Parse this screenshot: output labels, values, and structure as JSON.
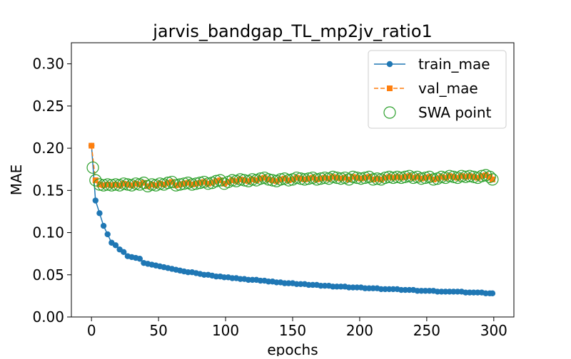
{
  "chart_data": {
    "type": "line",
    "title": "jarvis_bandgap_TL_mp2jv_ratio1",
    "xlabel": "epochs",
    "ylabel": "MAE",
    "xlim": [
      -15,
      315
    ],
    "ylim": [
      0.0,
      0.325
    ],
    "x_ticks": [
      0,
      50,
      100,
      150,
      200,
      250,
      300
    ],
    "y_ticks": [
      0.0,
      0.05,
      0.1,
      0.15,
      0.2,
      0.25,
      0.3
    ],
    "y_tick_labels": [
      "0.00",
      "0.05",
      "0.10",
      "0.15",
      "0.20",
      "0.25",
      "0.30"
    ],
    "grid": false,
    "legend_position": "top-right",
    "colors": {
      "train_mae": "#1f77b4",
      "val_mae": "#ff7f0e",
      "swa_point": "#2ca02c"
    },
    "series": [
      {
        "name": "train_mae",
        "marker": "circle",
        "linestyle": "solid",
        "x": [
          0,
          3,
          6,
          9,
          12,
          15,
          18,
          21,
          24,
          27,
          30,
          33,
          36,
          39,
          42,
          45,
          48,
          51,
          54,
          57,
          60,
          63,
          66,
          69,
          72,
          75,
          78,
          81,
          84,
          87,
          90,
          93,
          96,
          99,
          102,
          105,
          108,
          111,
          114,
          117,
          120,
          123,
          126,
          129,
          132,
          135,
          138,
          141,
          144,
          147,
          150,
          153,
          156,
          159,
          162,
          165,
          168,
          171,
          174,
          177,
          180,
          183,
          186,
          189,
          192,
          195,
          198,
          201,
          204,
          207,
          210,
          213,
          216,
          219,
          222,
          225,
          228,
          231,
          234,
          237,
          240,
          243,
          246,
          249,
          252,
          255,
          258,
          261,
          264,
          267,
          270,
          273,
          276,
          279,
          282,
          285,
          288,
          291,
          294,
          297,
          299
        ],
        "values": [
          0.203,
          0.138,
          0.123,
          0.108,
          0.098,
          0.088,
          0.085,
          0.08,
          0.077,
          0.072,
          0.071,
          0.07,
          0.069,
          0.064,
          0.063,
          0.062,
          0.061,
          0.06,
          0.059,
          0.058,
          0.057,
          0.056,
          0.055,
          0.054,
          0.053,
          0.053,
          0.052,
          0.051,
          0.05,
          0.05,
          0.049,
          0.048,
          0.048,
          0.047,
          0.047,
          0.046,
          0.046,
          0.045,
          0.045,
          0.044,
          0.044,
          0.044,
          0.043,
          0.043,
          0.042,
          0.042,
          0.041,
          0.041,
          0.04,
          0.04,
          0.04,
          0.039,
          0.039,
          0.039,
          0.038,
          0.038,
          0.038,
          0.037,
          0.037,
          0.037,
          0.036,
          0.036,
          0.036,
          0.036,
          0.035,
          0.035,
          0.035,
          0.035,
          0.034,
          0.034,
          0.034,
          0.034,
          0.033,
          0.033,
          0.033,
          0.033,
          0.033,
          0.032,
          0.032,
          0.032,
          0.032,
          0.031,
          0.031,
          0.031,
          0.031,
          0.031,
          0.03,
          0.03,
          0.03,
          0.03,
          0.03,
          0.03,
          0.03,
          0.029,
          0.029,
          0.029,
          0.029,
          0.029,
          0.028,
          0.028,
          0.028
        ]
      },
      {
        "name": "val_mae",
        "marker": "square",
        "linestyle": "dashed",
        "x": [
          0,
          3,
          6,
          9,
          12,
          15,
          18,
          21,
          24,
          27,
          30,
          33,
          36,
          39,
          42,
          45,
          48,
          51,
          54,
          57,
          60,
          63,
          66,
          69,
          72,
          75,
          78,
          81,
          84,
          87,
          90,
          93,
          96,
          99,
          102,
          105,
          108,
          111,
          114,
          117,
          120,
          123,
          126,
          129,
          132,
          135,
          138,
          141,
          144,
          147,
          150,
          153,
          156,
          159,
          162,
          165,
          168,
          171,
          174,
          177,
          180,
          183,
          186,
          189,
          192,
          195,
          198,
          201,
          204,
          207,
          210,
          213,
          216,
          219,
          222,
          225,
          228,
          231,
          234,
          237,
          240,
          243,
          246,
          249,
          252,
          255,
          258,
          261,
          264,
          267,
          270,
          273,
          276,
          279,
          282,
          285,
          288,
          291,
          294,
          297,
          299
        ],
        "values": [
          0.203,
          0.162,
          0.157,
          0.156,
          0.157,
          0.156,
          0.157,
          0.156,
          0.158,
          0.157,
          0.156,
          0.158,
          0.157,
          0.159,
          0.155,
          0.157,
          0.156,
          0.158,
          0.157,
          0.159,
          0.16,
          0.156,
          0.157,
          0.158,
          0.159,
          0.157,
          0.158,
          0.159,
          0.16,
          0.158,
          0.159,
          0.161,
          0.162,
          0.158,
          0.16,
          0.162,
          0.161,
          0.163,
          0.162,
          0.161,
          0.163,
          0.162,
          0.164,
          0.165,
          0.163,
          0.162,
          0.161,
          0.163,
          0.164,
          0.162,
          0.163,
          0.165,
          0.164,
          0.163,
          0.164,
          0.165,
          0.163,
          0.164,
          0.165,
          0.164,
          0.166,
          0.165,
          0.164,
          0.165,
          0.163,
          0.166,
          0.165,
          0.164,
          0.165,
          0.166,
          0.163,
          0.164,
          0.163,
          0.165,
          0.166,
          0.165,
          0.166,
          0.165,
          0.166,
          0.167,
          0.165,
          0.166,
          0.164,
          0.165,
          0.166,
          0.163,
          0.164,
          0.166,
          0.165,
          0.167,
          0.166,
          0.165,
          0.167,
          0.166,
          0.167,
          0.166,
          0.165,
          0.167,
          0.168,
          0.166,
          0.163
        ]
      },
      {
        "name": "SWA point",
        "marker": "open-circle",
        "linestyle": "none",
        "x": [
          1,
          3,
          6,
          9,
          12,
          15,
          18,
          21,
          24,
          27,
          30,
          33,
          36,
          39,
          42,
          45,
          48,
          51,
          54,
          57,
          60,
          63,
          66,
          69,
          72,
          75,
          78,
          81,
          84,
          87,
          90,
          93,
          96,
          99,
          102,
          105,
          108,
          111,
          114,
          117,
          120,
          123,
          126,
          129,
          132,
          135,
          138,
          141,
          144,
          147,
          150,
          153,
          156,
          159,
          162,
          165,
          168,
          171,
          174,
          177,
          180,
          183,
          186,
          189,
          192,
          195,
          198,
          201,
          204,
          207,
          210,
          213,
          216,
          219,
          222,
          225,
          228,
          231,
          234,
          237,
          240,
          243,
          246,
          249,
          252,
          255,
          258,
          261,
          264,
          267,
          270,
          273,
          276,
          279,
          282,
          285,
          288,
          291,
          294,
          297,
          299
        ],
        "values": [
          0.177,
          0.162,
          0.157,
          0.156,
          0.157,
          0.156,
          0.157,
          0.156,
          0.158,
          0.157,
          0.156,
          0.158,
          0.157,
          0.159,
          0.155,
          0.157,
          0.156,
          0.158,
          0.157,
          0.159,
          0.16,
          0.156,
          0.157,
          0.158,
          0.159,
          0.157,
          0.158,
          0.159,
          0.16,
          0.158,
          0.159,
          0.161,
          0.162,
          0.158,
          0.16,
          0.162,
          0.161,
          0.163,
          0.162,
          0.161,
          0.163,
          0.162,
          0.164,
          0.165,
          0.163,
          0.162,
          0.161,
          0.163,
          0.164,
          0.162,
          0.163,
          0.165,
          0.164,
          0.163,
          0.164,
          0.165,
          0.163,
          0.164,
          0.165,
          0.164,
          0.166,
          0.165,
          0.164,
          0.165,
          0.163,
          0.166,
          0.165,
          0.164,
          0.165,
          0.166,
          0.163,
          0.164,
          0.163,
          0.165,
          0.166,
          0.165,
          0.166,
          0.165,
          0.166,
          0.167,
          0.165,
          0.166,
          0.164,
          0.165,
          0.166,
          0.163,
          0.164,
          0.166,
          0.165,
          0.167,
          0.166,
          0.165,
          0.167,
          0.166,
          0.167,
          0.166,
          0.165,
          0.167,
          0.168,
          0.166,
          0.163
        ]
      }
    ]
  }
}
